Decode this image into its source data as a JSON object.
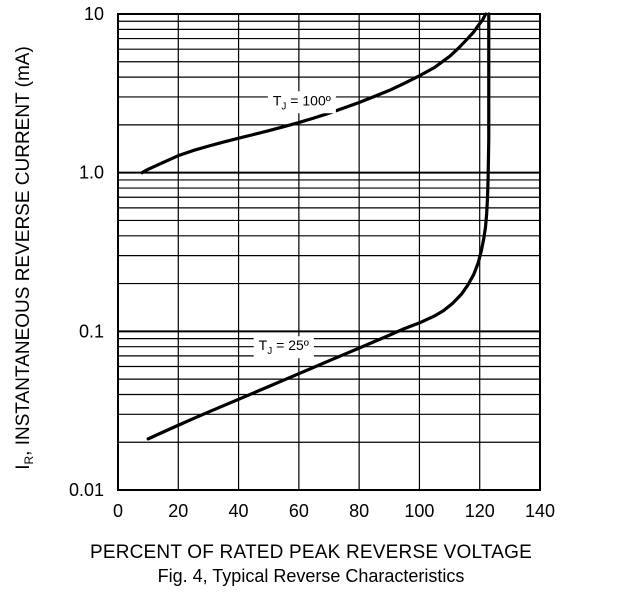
{
  "chart_data": {
    "type": "line",
    "title": "Fig. 4,  Typical Reverse Characteristics",
    "xlabel": "PERCENT OF RATED PEAK REVERSE VOLTAGE",
    "ylabel": {
      "symbol": "I",
      "subscript": "R",
      "text": ", INSTANTANEOUS REVERSE CURRENT (mA)"
    },
    "xlim": [
      0,
      140
    ],
    "ylim": [
      0.01,
      10
    ],
    "yscale": "log",
    "grid": true,
    "xticks": [
      {
        "value": 0,
        "label": "0"
      },
      {
        "value": 20,
        "label": "20"
      },
      {
        "value": 40,
        "label": "40"
      },
      {
        "value": 60,
        "label": "60"
      },
      {
        "value": 80,
        "label": "80"
      },
      {
        "value": 100,
        "label": "100"
      },
      {
        "value": 120,
        "label": "120"
      },
      {
        "value": 140,
        "label": "140"
      }
    ],
    "yticks": [
      {
        "value": 0.01,
        "label": "0.01"
      },
      {
        "value": 0.1,
        "label": "0.1"
      },
      {
        "value": 1,
        "label": "1.0"
      },
      {
        "value": 10,
        "label": "10"
      }
    ],
    "series": [
      {
        "label_main": "T",
        "label_sub": "J",
        "label_rest": " = 100º",
        "label_at": [
          61,
          2.66
        ],
        "x": [
          8,
          10,
          15,
          20,
          25,
          30,
          35,
          40,
          45,
          50,
          55,
          60,
          65,
          70,
          75,
          80,
          85,
          90,
          95,
          100,
          105,
          110,
          113,
          116,
          118,
          119,
          120,
          121,
          121.6,
          122
        ],
        "y": [
          1.0,
          1.05,
          1.16,
          1.28,
          1.38,
          1.47,
          1.56,
          1.65,
          1.74,
          1.84,
          1.95,
          2.07,
          2.21,
          2.37,
          2.56,
          2.77,
          3.02,
          3.3,
          3.66,
          4.08,
          4.6,
          5.4,
          6.1,
          7.0,
          7.7,
          8.2,
          8.7,
          9.2,
          9.7,
          10.0
        ]
      },
      {
        "label_main": "T",
        "label_sub": "J",
        "label_rest": " = 25º",
        "label_at": [
          55,
          0.076
        ],
        "x": [
          10,
          15,
          20,
          25,
          30,
          35,
          40,
          45,
          50,
          55,
          60,
          65,
          70,
          75,
          80,
          85,
          90,
          95,
          100,
          105,
          108,
          111,
          114,
          116,
          118,
          119.5,
          120.5,
          121.3,
          121.9,
          122.3,
          122.6,
          122.8,
          123,
          123,
          123
        ],
        "y": [
          0.021,
          0.0232,
          0.0256,
          0.0282,
          0.031,
          0.034,
          0.0373,
          0.0409,
          0.0449,
          0.0493,
          0.0541,
          0.0594,
          0.0652,
          0.0715,
          0.0784,
          0.0861,
          0.0945,
          0.104,
          0.113,
          0.125,
          0.135,
          0.15,
          0.172,
          0.195,
          0.228,
          0.27,
          0.32,
          0.38,
          0.45,
          0.55,
          0.7,
          0.95,
          1.6,
          4.0,
          10.0
        ]
      }
    ]
  }
}
